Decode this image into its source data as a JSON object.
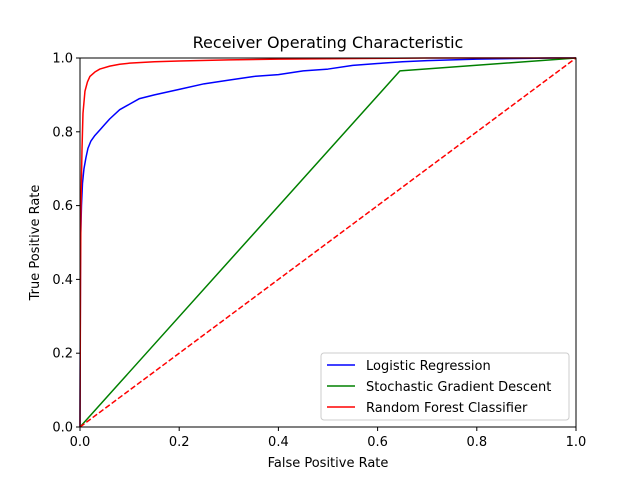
{
  "chart_data": {
    "type": "line",
    "title": "Receiver Operating Characteristic",
    "xlabel": "False Positive Rate",
    "ylabel": "True Positive Rate",
    "xlim": [
      0,
      1
    ],
    "ylim": [
      0,
      1
    ],
    "xticks": [
      0.0,
      0.2,
      0.4,
      0.6,
      0.8,
      1.0
    ],
    "yticks": [
      0.0,
      0.2,
      0.4,
      0.6,
      0.8,
      1.0
    ],
    "xtick_labels": [
      "0.0",
      "0.2",
      "0.4",
      "0.6",
      "0.8",
      "1.0"
    ],
    "ytick_labels": [
      "0.0",
      "0.2",
      "0.4",
      "0.6",
      "0.8",
      "1.0"
    ],
    "grid": false,
    "legend_position": "lower-right",
    "series": [
      {
        "name": "Logistic Regression",
        "color": "#0000ff",
        "style": "solid",
        "x": [
          0,
          0.001,
          0.003,
          0.005,
          0.008,
          0.012,
          0.016,
          0.022,
          0.03,
          0.04,
          0.05,
          0.06,
          0.08,
          0.1,
          0.12,
          0.15,
          0.2,
          0.25,
          0.3,
          0.35,
          0.4,
          0.45,
          0.5,
          0.55,
          0.6,
          0.65,
          0.7,
          0.75,
          0.8,
          0.85,
          0.9,
          0.95,
          1.0
        ],
        "y": [
          0,
          0.5,
          0.6,
          0.66,
          0.7,
          0.73,
          0.755,
          0.775,
          0.79,
          0.805,
          0.82,
          0.835,
          0.86,
          0.875,
          0.89,
          0.9,
          0.915,
          0.93,
          0.94,
          0.95,
          0.955,
          0.965,
          0.97,
          0.98,
          0.985,
          0.99,
          0.993,
          0.995,
          0.997,
          0.998,
          0.999,
          1.0,
          1.0
        ]
      },
      {
        "name": "Stochastic Gradient Descent",
        "color": "#008000",
        "style": "solid",
        "x": [
          0,
          0.645,
          1.0
        ],
        "y": [
          0,
          0.965,
          1.0
        ]
      },
      {
        "name": "Random Forest Classifier",
        "color": "#ff0000",
        "style": "solid",
        "x": [
          0,
          0.001,
          0.002,
          0.004,
          0.006,
          0.01,
          0.015,
          0.02,
          0.03,
          0.04,
          0.06,
          0.08,
          0.1,
          0.15,
          0.2,
          0.3,
          0.4,
          0.5,
          0.6,
          0.7,
          0.8,
          0.9,
          1.0
        ],
        "y": [
          0,
          0.4,
          0.6,
          0.75,
          0.85,
          0.91,
          0.935,
          0.95,
          0.962,
          0.97,
          0.978,
          0.983,
          0.986,
          0.99,
          0.992,
          0.995,
          0.997,
          0.998,
          0.999,
          1.0,
          1.0,
          1.0,
          1.0
        ]
      },
      {
        "name": "",
        "color": "#ff0000",
        "style": "dashed",
        "x": [
          0,
          1
        ],
        "y": [
          0,
          1
        ]
      }
    ]
  }
}
